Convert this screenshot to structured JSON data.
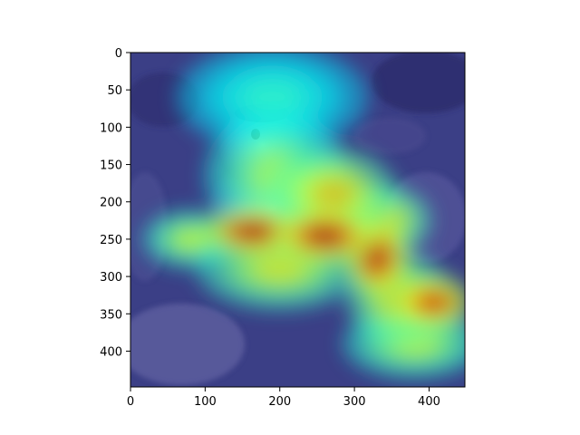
{
  "chart_data": {
    "type": "heatmap",
    "title": "",
    "xlabel": "",
    "ylabel": "",
    "xlim": [
      0,
      448
    ],
    "ylim": [
      448,
      0
    ],
    "x_ticks": [
      0,
      100,
      200,
      300,
      400
    ],
    "y_ticks": [
      0,
      50,
      100,
      150,
      200,
      250,
      300,
      350,
      400
    ],
    "x_tick_labels": [
      "0",
      "100",
      "200",
      "300",
      "400"
    ],
    "y_tick_labels": [
      "0",
      "50",
      "100",
      "150",
      "200",
      "250",
      "300",
      "350",
      "400"
    ],
    "colormap": "jet",
    "colors": {
      "background": "#3a3f8a",
      "low": "#2a2f9a",
      "mid": "#3ee0d0",
      "high": "#ff2a10",
      "axis": "#000000"
    },
    "hotspots": [
      {
        "x": 165,
        "y": 240,
        "rx": 45,
        "ry": 22,
        "intensity": 1.0
      },
      {
        "x": 260,
        "y": 245,
        "rx": 45,
        "ry": 25,
        "intensity": 1.0
      },
      {
        "x": 330,
        "y": 275,
        "rx": 30,
        "ry": 35,
        "intensity": 0.95
      },
      {
        "x": 405,
        "y": 335,
        "rx": 35,
        "ry": 25,
        "intensity": 0.9
      },
      {
        "x": 270,
        "y": 190,
        "rx": 55,
        "ry": 40,
        "intensity": 0.6
      },
      {
        "x": 340,
        "y": 225,
        "rx": 40,
        "ry": 30,
        "intensity": 0.55
      },
      {
        "x": 200,
        "y": 290,
        "rx": 70,
        "ry": 35,
        "intensity": 0.5
      },
      {
        "x": 360,
        "y": 330,
        "rx": 45,
        "ry": 40,
        "intensity": 0.55
      },
      {
        "x": 380,
        "y": 390,
        "rx": 60,
        "ry": 30,
        "intensity": 0.45
      },
      {
        "x": 80,
        "y": 250,
        "rx": 40,
        "ry": 25,
        "intensity": 0.45
      },
      {
        "x": 195,
        "y": 165,
        "rx": 60,
        "ry": 55,
        "intensity": 0.4
      },
      {
        "x": 190,
        "y": 60,
        "rx": 80,
        "ry": 45,
        "intensity": 0.2
      }
    ]
  }
}
